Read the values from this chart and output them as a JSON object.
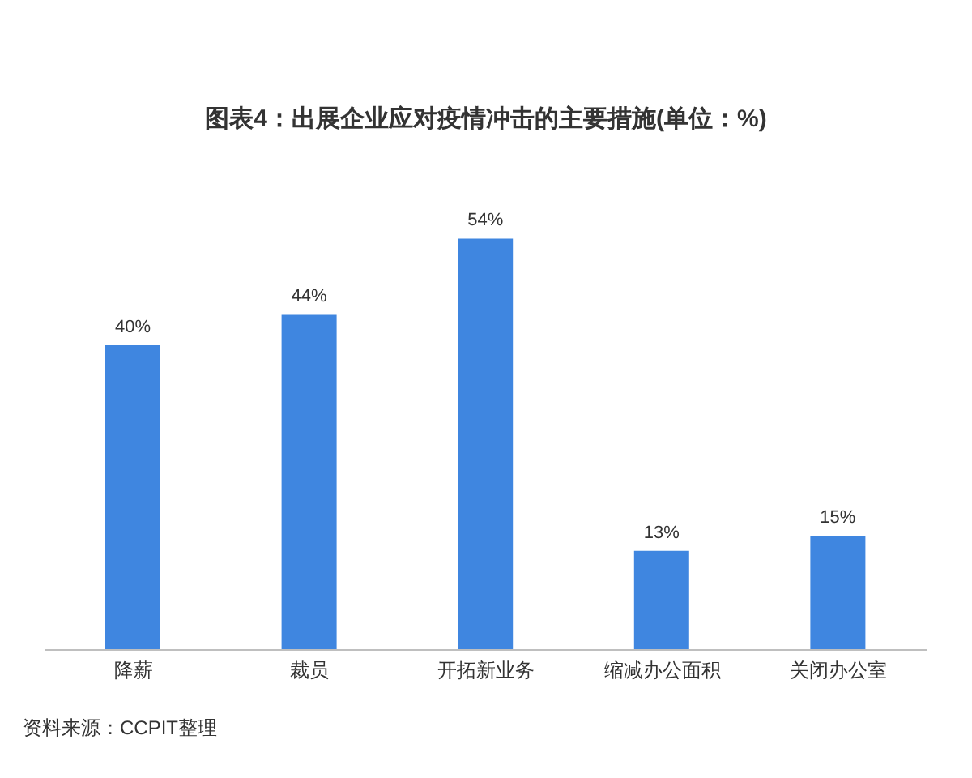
{
  "chart_data": {
    "type": "bar",
    "title": "图表4：出展企业应对疫情冲击的主要措施(单位：%)",
    "categories": [
      "降薪",
      "裁员",
      "开拓新业务",
      "缩减办公面积",
      "关闭办公室"
    ],
    "values": [
      40,
      44,
      54,
      13,
      15
    ],
    "value_labels": [
      "40%",
      "44%",
      "54%",
      "13%",
      "15%"
    ],
    "color": "#3f86e0",
    "annotations": [
      "资料来源：CCPIT整理"
    ]
  }
}
